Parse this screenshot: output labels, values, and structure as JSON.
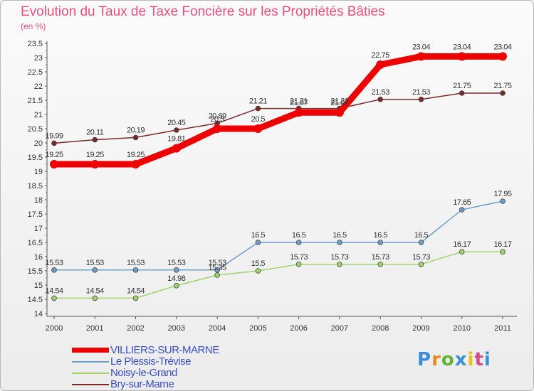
{
  "chart_data": {
    "type": "line",
    "title": "Evolution du Taux de Taxe Foncière sur les Propriétés Bâties",
    "unit_label": "(en %)",
    "x": [
      "2000",
      "2001",
      "2002",
      "2003",
      "2004",
      "2005",
      "2006",
      "2007",
      "2008",
      "2009",
      "2010",
      "2011"
    ],
    "ylim": [
      14,
      23.5
    ],
    "yticks": [
      "14",
      "14.5",
      "15",
      "15.5",
      "16",
      "16.5",
      "17",
      "17.5",
      "18",
      "18.5",
      "19",
      "19.5",
      "20",
      "20.5",
      "21",
      "21.5",
      "22",
      "22.5",
      "23",
      "23.5"
    ],
    "series": [
      {
        "name": "Bry-sur-Marne",
        "color": "#7b2a2a",
        "values": [
          19.99,
          20.11,
          20.19,
          20.45,
          20.69,
          21.21,
          21.21,
          21.21,
          21.53,
          21.53,
          21.75,
          21.75
        ],
        "labels": [
          "19.99",
          "20.11",
          "20.19",
          "20.45",
          "20.69",
          "21.21",
          "21.21",
          "21.21",
          "21.53",
          "21.53",
          "21.75",
          "21.75"
        ]
      },
      {
        "name": "Le Plessis-Trévise",
        "color": "#6f9ecb",
        "values": [
          15.53,
          15.53,
          15.53,
          15.53,
          15.53,
          16.5,
          16.5,
          16.5,
          16.5,
          16.5,
          17.65,
          17.95
        ],
        "labels": [
          "15.53",
          "15.53",
          "15.53",
          "15.53",
          "15.53",
          "16.5",
          "16.5",
          "16.5",
          "16.5",
          "16.5",
          "17.65",
          "17.95"
        ]
      },
      {
        "name": "Noisy-le-Grand",
        "color": "#9ed46a",
        "values": [
          14.54,
          14.54,
          14.54,
          14.98,
          15.35,
          15.5,
          15.73,
          15.73,
          15.73,
          15.73,
          16.17,
          16.17
        ],
        "labels": [
          "14.54",
          "14.54",
          "14.54",
          "14.98",
          "15.35",
          "15.5",
          "15.73",
          "15.73",
          "15.73",
          "15.73",
          "16.17",
          "16.17"
        ]
      },
      {
        "name": "VILLIERS-SUR-MARNE",
        "color": "#ee0000",
        "values": [
          19.25,
          19.25,
          19.25,
          19.81,
          20.5,
          20.5,
          21.07,
          21.07,
          22.75,
          23.04,
          23.04,
          23.04
        ],
        "labels": [
          "19.25",
          "19.25",
          "19.25",
          "19.81",
          "20.5",
          "20.5",
          "21.07",
          "21.07",
          "22.75",
          "23.04",
          "23.04",
          "23.04"
        ]
      }
    ],
    "legend": [
      "VILLIERS-SUR-MARNE",
      "Le Plessis-Trévise",
      "Noisy-le-Grand",
      "Bry-sur-Marne"
    ],
    "legend_position": "bottom-left",
    "grid": false
  },
  "logo": {
    "letters": [
      "P",
      "r",
      "o",
      "x",
      "i",
      "t",
      "i"
    ],
    "colors": [
      "#3a8fd6",
      "#e98a1d",
      "#61b33a",
      "#3a8fd6",
      "#e9c21d",
      "#d14a8a",
      "#3a8fd6"
    ]
  }
}
